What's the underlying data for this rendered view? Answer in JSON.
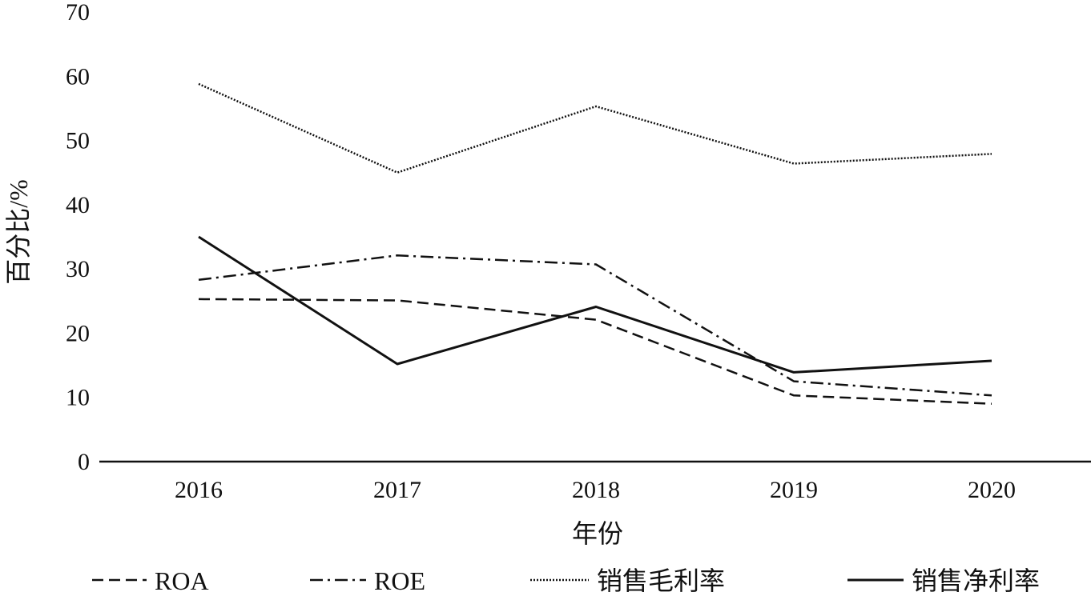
{
  "chart_data": {
    "type": "line",
    "title": "",
    "xlabel": "年份",
    "ylabel": "百分比/%",
    "categories": [
      "2016",
      "2017",
      "2018",
      "2019",
      "2020"
    ],
    "ylim": [
      0,
      70
    ],
    "yticks": [
      "0",
      "10",
      "20",
      "30",
      "40",
      "50",
      "60",
      "70"
    ],
    "grid": false,
    "legend_position": "bottom",
    "series": [
      {
        "name": "ROA",
        "style": "dashed",
        "color": "#111111",
        "values": [
          25.3,
          25.1,
          22.1,
          10.3,
          9.0
        ]
      },
      {
        "name": "ROE",
        "style": "dashdot",
        "color": "#111111",
        "values": [
          28.3,
          32.1,
          30.7,
          12.5,
          10.3
        ]
      },
      {
        "name": "销售毛利率",
        "style": "dotted",
        "color": "#111111",
        "values": [
          58.8,
          45.0,
          55.3,
          46.4,
          47.9
        ]
      },
      {
        "name": "销售净利率",
        "style": "solid",
        "color": "#111111",
        "values": [
          35.0,
          15.2,
          24.1,
          13.9,
          15.7
        ]
      }
    ]
  }
}
